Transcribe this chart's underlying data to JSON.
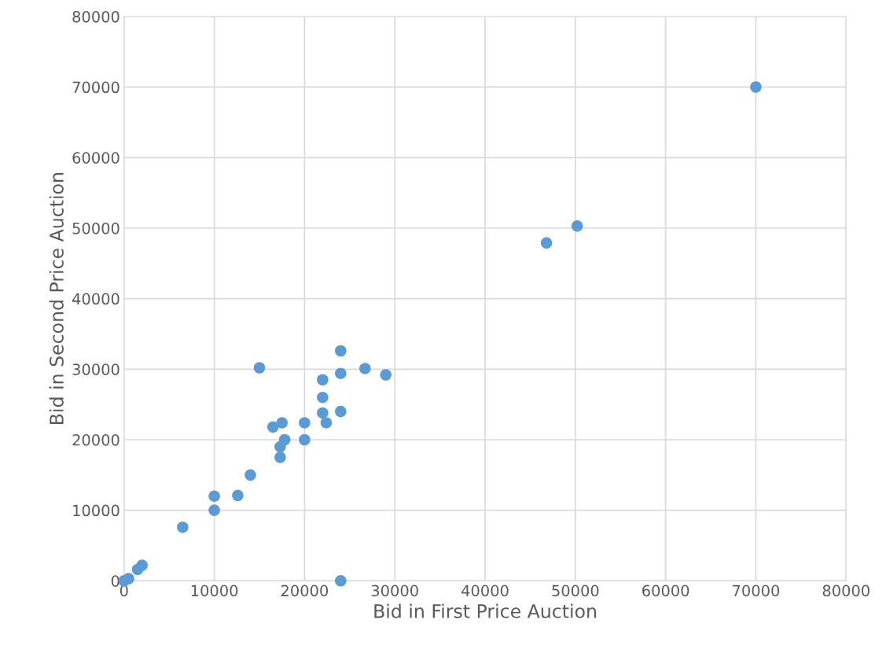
{
  "chart_data": {
    "type": "scatter",
    "xlabel": "Bid in First Price Auction",
    "ylabel": "Bid in Second Price Auction",
    "x": [
      0,
      500,
      1500,
      2000,
      6500,
      10000,
      10000,
      12600,
      14000,
      15000,
      16500,
      17500,
      17300,
      17800,
      17300,
      20000,
      20000,
      22000,
      22000,
      22000,
      22400,
      24000,
      24000,
      24000,
      24000,
      26700,
      29000,
      46800,
      50200,
      70000
    ],
    "series": [
      {
        "color": "#5b9bd5",
        "values": [
          0,
          300,
          1600,
          2200,
          7600,
          12000,
          10000,
          12100,
          15000,
          30200,
          21800,
          22400,
          19000,
          20000,
          17500,
          22400,
          20000,
          28500,
          26000,
          23800,
          22400,
          32600,
          29400,
          24000,
          0,
          30100,
          29200,
          47900,
          50300,
          70000
        ]
      }
    ],
    "xlim": [
      0,
      80000
    ],
    "ylim": [
      0,
      80000
    ],
    "xticks": [
      0,
      10000,
      20000,
      30000,
      40000,
      50000,
      60000,
      70000,
      80000
    ],
    "yticks": [
      0,
      10000,
      20000,
      30000,
      40000,
      50000,
      60000,
      70000,
      80000
    ],
    "grid": true,
    "marker": "circle"
  }
}
